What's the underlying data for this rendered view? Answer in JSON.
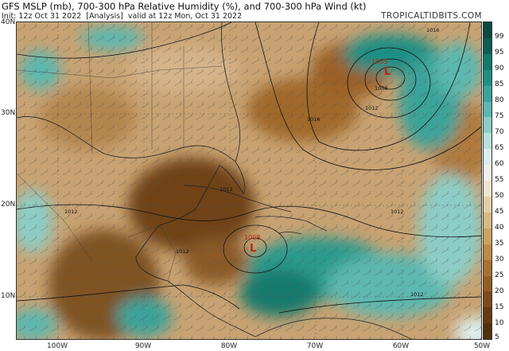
{
  "header": {
    "title": "GFS MSLP (mb), 700-300 hPa Relative Humidity (%), and 700-300 hPa Wind (kt)",
    "init": "Init: 12z Oct 31 2022",
    "analysis": "[Analysis]",
    "valid": "valid at 12z Mon, Oct 31 2022",
    "brand": "TROPICALTIDBITS.COM"
  },
  "axes": {
    "lat_labels": [
      "40N",
      "30N",
      "20N",
      "10N"
    ],
    "lon_labels": [
      "100W",
      "90W",
      "80W",
      "70W",
      "60W",
      "50W"
    ]
  },
  "colorbar": {
    "ticks": [
      "99",
      "95",
      "90",
      "85",
      "80",
      "75",
      "70",
      "65",
      "60",
      "55",
      "50",
      "45",
      "40",
      "35",
      "30",
      "25",
      "20",
      "15",
      "10",
      "5"
    ],
    "colors": [
      "#0b4a40",
      "#0f5d53",
      "#147a6e",
      "#1f8f84",
      "#3ba39a",
      "#5cb8b0",
      "#8ccdc6",
      "#b9e0db",
      "#dceeed",
      "#f3f1ea",
      "#efe4cf",
      "#e4d0a7",
      "#d8b982",
      "#cba262",
      "#bb8a47",
      "#a87132",
      "#945d24",
      "#7d4a19",
      "#673b12",
      "#52300d"
    ]
  },
  "lows": [
    {
      "symbol": "L",
      "value": "1005"
    },
    {
      "symbol": "L",
      "value": "1008"
    }
  ],
  "isobar_labels": [
    "1016",
    "1012",
    "1008",
    "1012",
    "1016",
    "1012",
    "1012",
    "1012",
    "1012"
  ]
}
